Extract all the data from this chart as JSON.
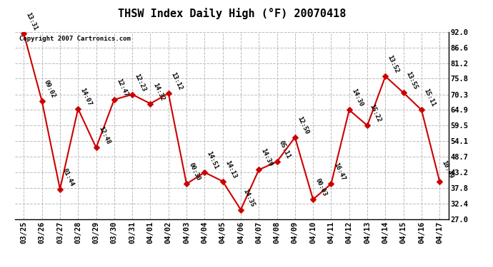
{
  "title": "THSW Index Daily High (°F) 20070418",
  "copyright": "Copyright 2007 Cartronics.com",
  "background_color": "#ffffff",
  "plot_bg_color": "#ffffff",
  "grid_color": "#bbbbbb",
  "line_color": "#cc0000",
  "marker_color": "#cc0000",
  "dates": [
    "03/25",
    "03/26",
    "03/27",
    "03/28",
    "03/29",
    "03/30",
    "03/31",
    "04/01",
    "04/02",
    "04/03",
    "04/04",
    "04/05",
    "04/06",
    "04/07",
    "04/08",
    "04/09",
    "04/10",
    "04/11",
    "04/12",
    "04/13",
    "04/14",
    "04/15",
    "04/16",
    "04/17"
  ],
  "values": [
    91.4,
    68.0,
    37.4,
    65.3,
    51.8,
    68.5,
    70.3,
    67.1,
    70.7,
    39.2,
    43.2,
    40.1,
    30.2,
    44.1,
    46.9,
    55.4,
    33.8,
    39.2,
    64.9,
    59.5,
    76.6,
    70.9,
    64.9,
    40.1
  ],
  "labels": [
    "13:31",
    "09:02",
    "01:44",
    "14:07",
    "12:48",
    "12:47",
    "12:23",
    "14:32",
    "13:12",
    "00:30",
    "14:51",
    "14:13",
    "14:35",
    "14:39",
    "05:11",
    "12:50",
    "00:03",
    "16:47",
    "14:30",
    "15:22",
    "13:52",
    "13:55",
    "15:11",
    "10:49"
  ],
  "ylim": [
    27.0,
    92.0
  ],
  "yticks": [
    27.0,
    32.4,
    37.8,
    43.2,
    48.7,
    54.1,
    59.5,
    64.9,
    70.3,
    75.8,
    81.2,
    86.6,
    92.0
  ],
  "title_fontsize": 11,
  "label_fontsize": 6.5,
  "tick_fontsize": 7.5,
  "copyright_fontsize": 6.5
}
